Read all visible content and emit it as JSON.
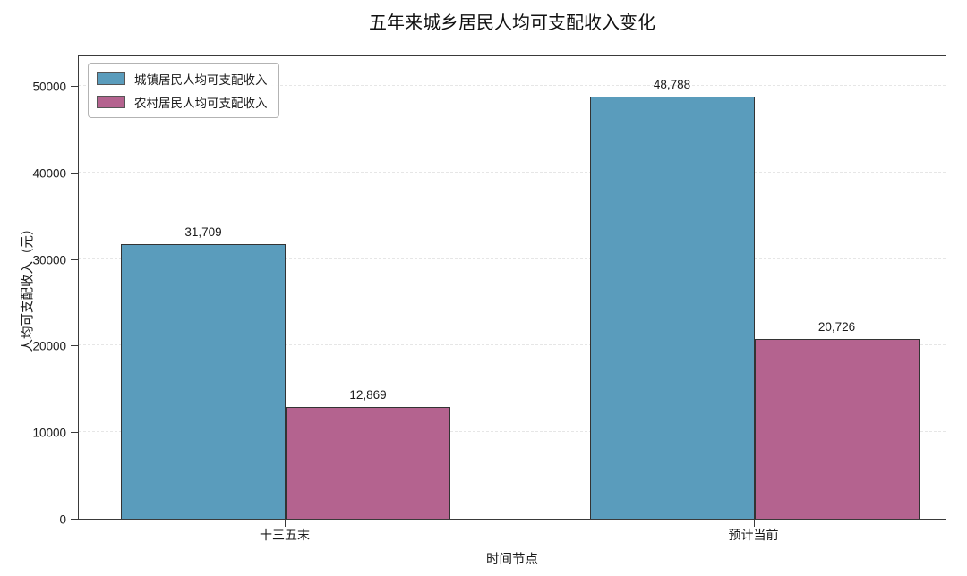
{
  "chart_data": {
    "type": "bar",
    "title": "五年来城乡居民人均可支配收入变化",
    "xlabel": "时间节点",
    "ylabel": "人均可支配收入（元）",
    "categories": [
      "十三五末",
      "预计当前"
    ],
    "series": [
      {
        "name": "城镇居民人均可支配收入",
        "color": "#5A9CBC",
        "values": [
          31709,
          48788
        ],
        "labels": [
          "31,709",
          "48,788"
        ]
      },
      {
        "name": "农村居民人均可支配收入",
        "color": "#B4638F",
        "values": [
          12869,
          20726
        ],
        "labels": [
          "12,869",
          "20,726"
        ]
      }
    ],
    "yticks": [
      0,
      10000,
      20000,
      30000,
      40000,
      50000
    ],
    "ylim": [
      0,
      53600
    ],
    "grid": "horizontal-dashed",
    "legend_position": "upper-left",
    "bar_edge_color": "#333333",
    "spine_color": "#3a3a3a",
    "gridline_color": "#e6e6e6"
  }
}
